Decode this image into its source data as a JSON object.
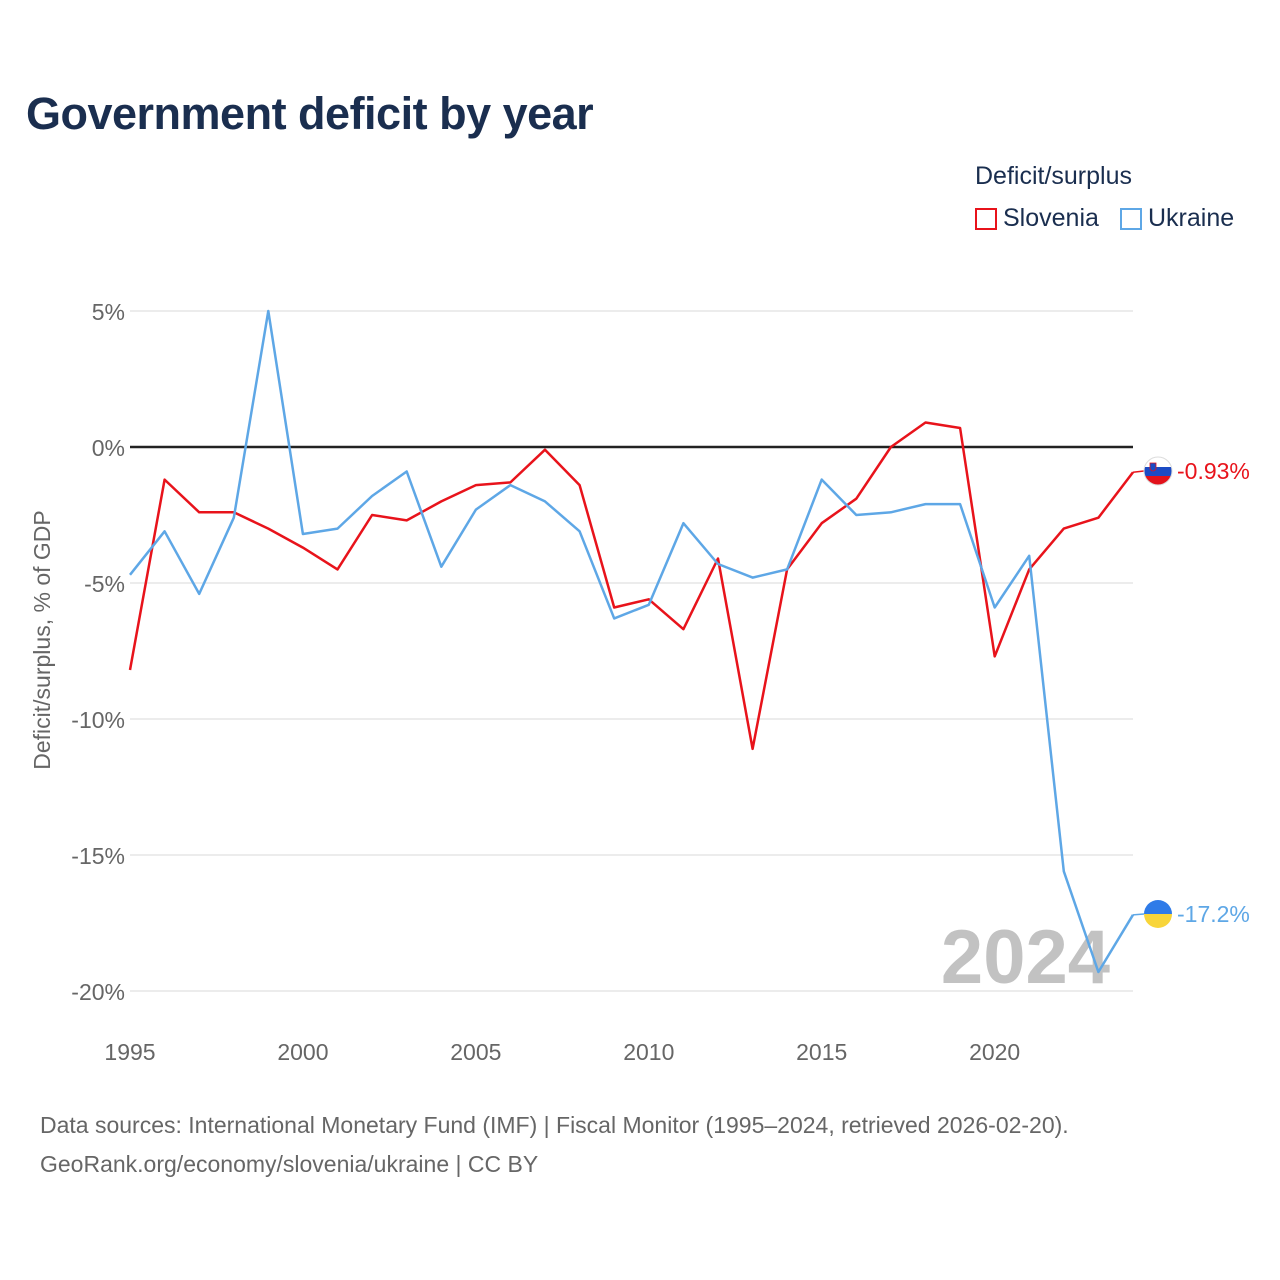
{
  "header": {
    "title": "Government deficit by year"
  },
  "legend": {
    "title": "Deficit/surplus",
    "items": [
      {
        "label": "Slovenia",
        "color": "#e8131b"
      },
      {
        "label": "Ukraine",
        "color": "#5ea7e6"
      }
    ]
  },
  "footer": {
    "source_line": "Data sources: International Monetary Fund (IMF) | Fiscal Monitor (1995–2024, retrieved 2026-02-20).",
    "url_line": "GeoRank.org/economy/slovenia/ukraine | CC BY"
  },
  "chart_data": {
    "type": "line",
    "title": "Government deficit by year",
    "xlabel": "",
    "ylabel": "Deficit/surplus, % of GDP",
    "xlim": [
      1995,
      2024
    ],
    "ylim": [
      -20,
      5
    ],
    "x_ticks": [
      1995,
      2000,
      2005,
      2010,
      2015,
      2020
    ],
    "y_ticks": [
      {
        "value": 5,
        "label": "5%"
      },
      {
        "value": 0,
        "label": "0%"
      },
      {
        "value": -5,
        "label": "-5%"
      },
      {
        "value": -10,
        "label": "-10%"
      },
      {
        "value": -15,
        "label": "-15%"
      },
      {
        "value": -20,
        "label": "-20%"
      }
    ],
    "grid": true,
    "year_watermark": "2024",
    "x": [
      1995,
      1996,
      1997,
      1998,
      1999,
      2000,
      2001,
      2002,
      2003,
      2004,
      2005,
      2006,
      2007,
      2008,
      2009,
      2010,
      2011,
      2012,
      2013,
      2014,
      2015,
      2016,
      2017,
      2018,
      2019,
      2020,
      2021,
      2022,
      2023,
      2024
    ],
    "series": [
      {
        "name": "Slovenia",
        "color": "#e8131b",
        "flag": "slovenia-flag-icon",
        "end_label": "-0.93%",
        "values": [
          -8.2,
          -1.2,
          -2.4,
          -2.4,
          -3.0,
          -3.7,
          -4.5,
          -2.5,
          -2.7,
          -2.0,
          -1.4,
          -1.3,
          -0.1,
          -1.4,
          -5.9,
          -5.6,
          -6.7,
          -4.1,
          -11.1,
          -4.5,
          -2.8,
          -1.9,
          0.0,
          0.9,
          0.7,
          -7.7,
          -4.5,
          -3.0,
          -2.6,
          -0.93
        ]
      },
      {
        "name": "Ukraine",
        "color": "#5ea7e6",
        "flag": "ukraine-flag-icon",
        "end_label": "-17.2%",
        "values": [
          -4.7,
          -3.1,
          -5.4,
          -2.6,
          5.0,
          -3.2,
          -3.0,
          -1.8,
          -0.9,
          -4.4,
          -2.3,
          -1.4,
          -2.0,
          -3.1,
          -6.3,
          -5.8,
          -2.8,
          -4.3,
          -4.8,
          -4.5,
          -1.2,
          -2.5,
          -2.4,
          -2.1,
          -2.1,
          -5.9,
          -4.0,
          -15.6,
          -19.3,
          -17.2
        ]
      }
    ]
  }
}
